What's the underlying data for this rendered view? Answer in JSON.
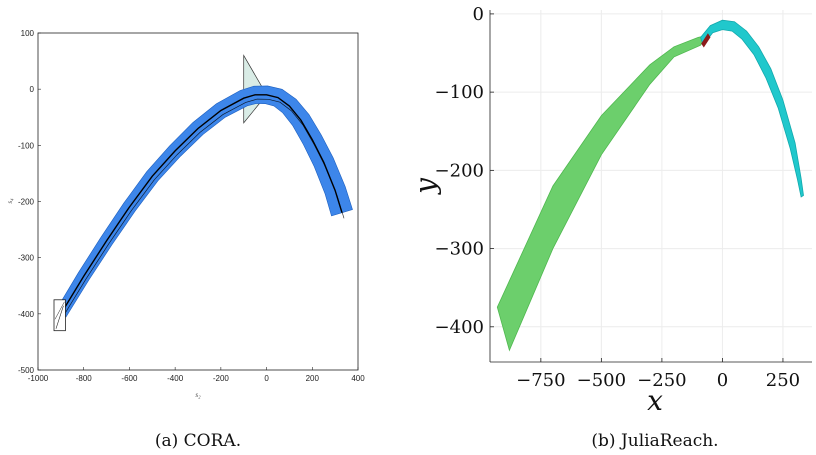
{
  "chart_data": [
    {
      "type": "area",
      "xlim": [
        -1000,
        400
      ],
      "ylim": [
        -500,
        100
      ],
      "x_ticks": [
        -1000,
        -800,
        -600,
        -400,
        -200,
        0,
        200,
        400
      ],
      "y_ticks": [
        100,
        0,
        -100,
        -200,
        -300,
        -400,
        -500
      ],
      "xlabel": "s₂",
      "ylabel": "s₄",
      "grid": false,
      "colors": {
        "reach": "#3d86ea",
        "trajectory": "#000000",
        "guard": "#d9ece6",
        "initial": "#ffffff"
      },
      "initial_set": {
        "x": [
          -930,
          -880
        ],
        "y": [
          -430,
          -375
        ]
      },
      "guard_polygon": {
        "x": [
          -100,
          0,
          -100
        ],
        "y": [
          60,
          -10,
          -60
        ]
      },
      "trajectory": {
        "x": [
          -900,
          -800,
          -700,
          -600,
          -500,
          -400,
          -300,
          -200,
          -100,
          -50,
          0,
          50,
          100,
          150,
          200,
          250,
          300,
          330
        ],
        "y": [
          -400,
          -333,
          -270,
          -210,
          -155,
          -110,
          -70,
          -38,
          -16,
          -10,
          -10,
          -15,
          -30,
          -55,
          -90,
          -130,
          -180,
          -220
        ]
      },
      "band_width": 22
    },
    {
      "type": "area",
      "xlim": [
        -960,
        370
      ],
      "ylim": [
        -445,
        5
      ],
      "x_ticks": [
        -750,
        -500,
        -250,
        0,
        250
      ],
      "x_tick_labels": [
        "−750",
        "−500",
        "−250",
        "0",
        "250"
      ],
      "y_ticks": [
        0,
        -100,
        -200,
        -300,
        -400
      ],
      "y_tick_labels": [
        "0",
        "−100",
        "−200",
        "−300",
        "−400"
      ],
      "xlabel": "x",
      "ylabel": "y",
      "grid": true,
      "colors": {
        "mode1": "#6ccf6c",
        "mode2": "#20c8cc",
        "switch": "#8b1a1a"
      },
      "mode1_band": {
        "lower_x": [
          -880,
          -700,
          -500,
          -300,
          -200,
          -90
        ],
        "lower_y": [
          -430,
          -300,
          -180,
          -90,
          -55,
          -40
        ],
        "upper_x": [
          -930,
          -700,
          -500,
          -300,
          -200,
          -100,
          -70
        ],
        "upper_y": [
          -375,
          -220,
          -130,
          -65,
          -42,
          -30,
          -28
        ]
      },
      "mode2_band": {
        "outer_x": [
          -90,
          -50,
          0,
          50,
          100,
          150,
          200,
          250,
          300,
          325,
          335
        ],
        "outer_y": [
          -30,
          -15,
          -8,
          -10,
          -22,
          -42,
          -70,
          -110,
          -165,
          -210,
          -232
        ],
        "inner_x": [
          -80,
          -40,
          0,
          40,
          80,
          130,
          180,
          230,
          280,
          310,
          325
        ],
        "inner_y": [
          -40,
          -24,
          -20,
          -22,
          -32,
          -52,
          -82,
          -120,
          -172,
          -212,
          -234
        ]
      },
      "switch_region": {
        "x": [
          -85,
          -60
        ],
        "y": [
          -38,
          -26
        ]
      }
    }
  ],
  "captions": {
    "a": "(a)  CORA.",
    "b": "(b)  JuliaReach."
  }
}
